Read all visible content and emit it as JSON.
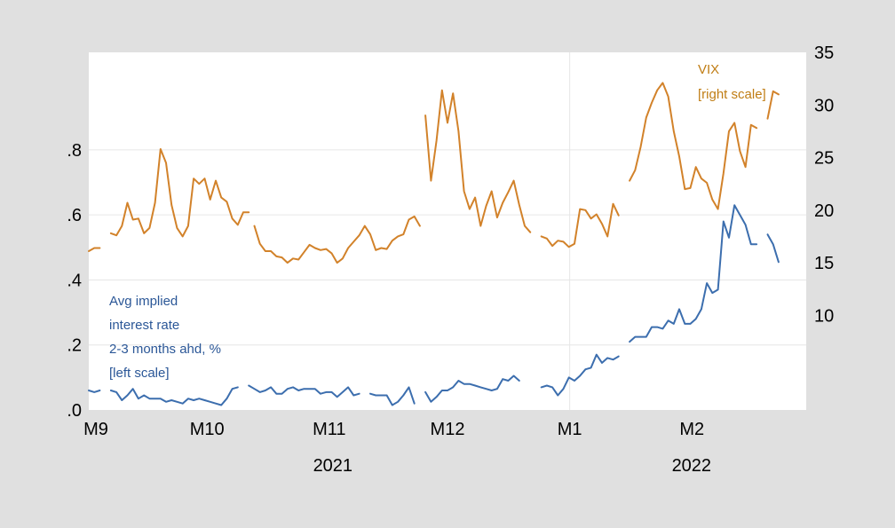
{
  "chart_data": {
    "type": "line",
    "x_tick_labels": [
      "M9",
      "M10",
      "M11",
      "M12",
      "M1",
      "M2"
    ],
    "year_labels": [
      "2021",
      "2022"
    ],
    "left_axis": {
      "ticks": [
        ".0",
        ".2",
        ".4",
        ".6",
        ".8"
      ],
      "ylim": [
        0,
        1.1
      ]
    },
    "right_axis": {
      "ticks": [
        "10",
        "15",
        "20",
        "25",
        "30",
        "35"
      ],
      "ylim": [
        1,
        35
      ]
    },
    "x_range_days": [
      0,
      182
    ],
    "year_divider_day": 122,
    "grid": true,
    "annotations": {
      "blue": [
        "Avg implied",
        "interest rate",
        "2-3 months ahd, %",
        "[left scale]"
      ],
      "orange": [
        "VIX",
        "[right scale]"
      ]
    },
    "colors": {
      "blue": "#3c6eae",
      "orange": "#d2822a",
      "background": "#e0e0e0",
      "plot": "#ffffff",
      "grid": "#e6e6e6"
    },
    "series": [
      {
        "axis": "left",
        "color": "#3c6eae",
        "segments": [
          [
            [
              0,
              0.06
            ],
            [
              1.4,
              0.055
            ],
            [
              2.8,
              0.06
            ]
          ],
          [
            [
              5.6,
              0.06
            ],
            [
              7,
              0.055
            ],
            [
              8.4,
              0.03
            ],
            [
              9.8,
              0.045
            ],
            [
              11.2,
              0.065
            ],
            [
              12.6,
              0.035
            ],
            [
              14,
              0.045
            ],
            [
              15.4,
              0.035
            ],
            [
              16.8,
              0.035
            ],
            [
              18.2,
              0.035
            ],
            [
              19.6,
              0.025
            ],
            [
              21,
              0.03
            ],
            [
              22.4,
              0.025
            ],
            [
              23.8,
              0.02
            ],
            [
              25.2,
              0.035
            ],
            [
              26.6,
              0.03
            ],
            [
              28,
              0.035
            ],
            [
              29.4,
              0.03
            ],
            [
              30.8,
              0.025
            ],
            [
              32.2,
              0.02
            ],
            [
              33.6,
              0.015
            ],
            [
              35,
              0.035
            ],
            [
              36.4,
              0.065
            ],
            [
              37.8,
              0.07
            ]
          ],
          [
            [
              40.6,
              0.075
            ],
            [
              42,
              0.065
            ],
            [
              43.4,
              0.055
            ],
            [
              44.8,
              0.06
            ],
            [
              46.2,
              0.07
            ],
            [
              47.6,
              0.05
            ],
            [
              49,
              0.05
            ],
            [
              50.4,
              0.065
            ],
            [
              51.8,
              0.07
            ],
            [
              53.2,
              0.06
            ],
            [
              54.6,
              0.065
            ],
            [
              56,
              0.065
            ],
            [
              57.4,
              0.065
            ],
            [
              58.8,
              0.05
            ],
            [
              60.2,
              0.055
            ],
            [
              61.6,
              0.055
            ],
            [
              63,
              0.04
            ],
            [
              64.4,
              0.055
            ],
            [
              65.8,
              0.07
            ],
            [
              67.2,
              0.045
            ],
            [
              68.6,
              0.05
            ]
          ],
          [
            [
              71.4,
              0.05
            ],
            [
              72.8,
              0.045
            ],
            [
              74.2,
              0.045
            ],
            [
              75.6,
              0.045
            ],
            [
              77,
              0.015
            ],
            [
              78.4,
              0.025
            ],
            [
              79.8,
              0.045
            ],
            [
              81.2,
              0.07
            ],
            [
              82.6,
              0.02
            ]
          ],
          [
            [
              85.4,
              0.055
            ],
            [
              86.8,
              0.025
            ],
            [
              88.2,
              0.04
            ],
            [
              89.6,
              0.06
            ],
            [
              91,
              0.06
            ],
            [
              92.4,
              0.07
            ],
            [
              93.8,
              0.09
            ],
            [
              95.2,
              0.08
            ],
            [
              96.6,
              0.08
            ],
            [
              98,
              0.075
            ],
            [
              99.4,
              0.07
            ],
            [
              100.8,
              0.065
            ],
            [
              102.2,
              0.06
            ],
            [
              103.6,
              0.065
            ],
            [
              105,
              0.095
            ],
            [
              106.4,
              0.09
            ],
            [
              107.8,
              0.105
            ],
            [
              109.2,
              0.09
            ]
          ],
          [
            [
              114.8,
              0.07
            ],
            [
              116.2,
              0.075
            ],
            [
              117.6,
              0.07
            ],
            [
              119,
              0.045
            ],
            [
              120.4,
              0.065
            ],
            [
              121.8,
              0.1
            ],
            [
              123.2,
              0.09
            ],
            [
              124.6,
              0.105
            ],
            [
              126,
              0.125
            ],
            [
              127.4,
              0.13
            ],
            [
              128.8,
              0.17
            ],
            [
              130.2,
              0.145
            ],
            [
              131.6,
              0.16
            ],
            [
              133,
              0.155
            ],
            [
              134.4,
              0.165
            ]
          ],
          [
            [
              137.2,
              0.21
            ],
            [
              138.6,
              0.225
            ],
            [
              140,
              0.225
            ],
            [
              141.4,
              0.225
            ],
            [
              142.8,
              0.255
            ],
            [
              144.2,
              0.255
            ],
            [
              145.6,
              0.25
            ],
            [
              147,
              0.275
            ],
            [
              148.4,
              0.265
            ],
            [
              149.8,
              0.31
            ],
            [
              151.2,
              0.265
            ],
            [
              152.6,
              0.265
            ],
            [
              154,
              0.28
            ],
            [
              155.4,
              0.31
            ],
            [
              156.8,
              0.39
            ],
            [
              158.2,
              0.36
            ],
            [
              159.6,
              0.37
            ],
            [
              161,
              0.58
            ],
            [
              162.4,
              0.53
            ],
            [
              163.8,
              0.63
            ],
            [
              165.2,
              0.6
            ],
            [
              166.6,
              0.57
            ],
            [
              168,
              0.51
            ],
            [
              169.4,
              0.51
            ]
          ],
          [
            [
              172.2,
              0.54
            ],
            [
              173.6,
              0.51
            ],
            [
              175,
              0.455
            ]
          ]
        ]
      },
      {
        "axis": "right",
        "color": "#d2822a",
        "segments": [
          [
            [
              0,
              16.1
            ],
            [
              1.4,
              16.4
            ],
            [
              2.8,
              16.4
            ]
          ],
          [
            [
              5.6,
              17.8
            ],
            [
              7,
              17.6
            ],
            [
              8.4,
              18.5
            ],
            [
              9.8,
              20.7
            ],
            [
              11.2,
              19.1
            ],
            [
              12.6,
              19.2
            ],
            [
              14,
              17.8
            ],
            [
              15.4,
              18.3
            ],
            [
              16.8,
              20.7
            ],
            [
              18.2,
              25.8
            ],
            [
              19.6,
              24.5
            ],
            [
              21,
              20.5
            ],
            [
              22.4,
              18.3
            ],
            [
              23.8,
              17.5
            ],
            [
              25.2,
              18.5
            ],
            [
              26.6,
              23
            ],
            [
              28,
              22.5
            ],
            [
              29.4,
              23
            ],
            [
              30.8,
              21
            ],
            [
              32.2,
              22.8
            ],
            [
              33.6,
              21.2
            ],
            [
              35,
              20.8
            ],
            [
              36.4,
              19.2
            ],
            [
              37.8,
              18.6
            ],
            [
              39.2,
              19.8
            ],
            [
              40.6,
              19.8
            ]
          ],
          [
            [
              42,
              18.5
            ],
            [
              43.4,
              16.8
            ],
            [
              44.8,
              16.1
            ],
            [
              46.2,
              16.1
            ],
            [
              47.6,
              15.6
            ],
            [
              49,
              15.5
            ],
            [
              50.4,
              15
            ],
            [
              51.8,
              15.4
            ],
            [
              53.2,
              15.3
            ],
            [
              54.6,
              16
            ],
            [
              56,
              16.7
            ],
            [
              57.4,
              16.4
            ],
            [
              58.8,
              16.2
            ],
            [
              60.2,
              16.3
            ],
            [
              61.6,
              15.9
            ],
            [
              63,
              15
            ],
            [
              64.4,
              15.4
            ],
            [
              65.8,
              16.4
            ],
            [
              67.2,
              17
            ],
            [
              68.6,
              17.6
            ],
            [
              70,
              18.5
            ],
            [
              71.4,
              17.7
            ],
            [
              72.8,
              16.2
            ],
            [
              74.2,
              16.4
            ],
            [
              75.6,
              16.3
            ],
            [
              77,
              17.1
            ],
            [
              78.4,
              17.5
            ],
            [
              79.8,
              17.7
            ],
            [
              81.2,
              19.1
            ],
            [
              82.6,
              19.4
            ],
            [
              84,
              18.5
            ]
          ],
          [
            [
              85.4,
              29
            ],
            [
              86.8,
              22.8
            ],
            [
              88.2,
              26.6
            ],
            [
              89.6,
              31.4
            ],
            [
              91,
              28.3
            ],
            [
              92.4,
              31.1
            ],
            [
              93.8,
              27.5
            ],
            [
              95.2,
              21.8
            ],
            [
              96.6,
              20.1
            ],
            [
              98,
              21.2
            ],
            [
              99.4,
              18.5
            ],
            [
              100.8,
              20.4
            ],
            [
              102.2,
              21.8
            ],
            [
              103.6,
              19.3
            ],
            [
              105,
              20.7
            ],
            [
              106.4,
              21.7
            ],
            [
              107.8,
              22.8
            ],
            [
              109.2,
              20.5
            ],
            [
              110.6,
              18.5
            ],
            [
              112,
              17.9
            ]
          ],
          [
            [
              114.8,
              17.5
            ],
            [
              116.2,
              17.3
            ],
            [
              117.6,
              16.6
            ],
            [
              119,
              17.1
            ],
            [
              120.4,
              17
            ],
            [
              121.8,
              16.5
            ],
            [
              123.2,
              16.8
            ],
            [
              124.6,
              20.1
            ],
            [
              126,
              20
            ],
            [
              127.4,
              19.2
            ],
            [
              128.8,
              19.6
            ],
            [
              130.2,
              18.7
            ],
            [
              131.6,
              17.5
            ],
            [
              133,
              20.6
            ],
            [
              134.4,
              19.5
            ]
          ],
          [
            [
              137.2,
              22.8
            ],
            [
              138.6,
              23.8
            ],
            [
              140,
              26
            ],
            [
              141.4,
              28.8
            ],
            [
              142.8,
              30.2
            ],
            [
              144.2,
              31.4
            ],
            [
              145.6,
              32.1
            ],
            [
              147,
              30.8
            ],
            [
              148.4,
              27.5
            ],
            [
              149.8,
              25.1
            ],
            [
              151.2,
              22
            ],
            [
              152.6,
              22.1
            ],
            [
              154,
              24.1
            ],
            [
              155.4,
              23
            ],
            [
              156.8,
              22.6
            ],
            [
              158.2,
              21
            ],
            [
              159.6,
              20.1
            ],
            [
              161,
              23.5
            ],
            [
              162.4,
              27.5
            ],
            [
              163.8,
              28.3
            ],
            [
              165.2,
              25.6
            ],
            [
              166.6,
              24.1
            ],
            [
              168,
              28.1
            ],
            [
              169.4,
              27.8
            ]
          ],
          [
            [
              172.2,
              28.7
            ],
            [
              173.6,
              31.3
            ],
            [
              175,
              31
            ]
          ]
        ]
      }
    ]
  }
}
